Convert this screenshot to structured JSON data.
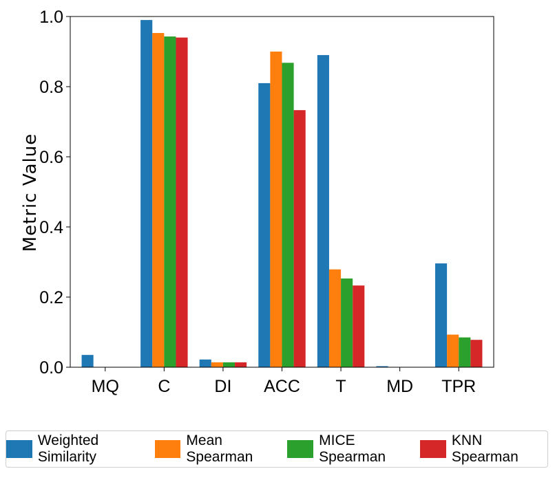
{
  "chart_data": {
    "type": "bar",
    "title": "",
    "xlabel": "",
    "ylabel": "Metric Value",
    "ylim": [
      0,
      1.0
    ],
    "yticks": [
      "0.0",
      "0.2",
      "0.4",
      "0.6",
      "0.8",
      "1.0"
    ],
    "categories": [
      "MQ",
      "C",
      "DI",
      "ACC",
      "T",
      "MD",
      "TPR"
    ],
    "series": [
      {
        "name": "Weighted Similarity",
        "color": "#1f77b4",
        "values": [
          0.035,
          0.99,
          0.022,
          0.81,
          0.89,
          0.003,
          0.296
        ]
      },
      {
        "name": "Mean Spearman",
        "color": "#ff7f0e",
        "values": [
          0.0,
          0.953,
          0.014,
          0.9,
          0.279,
          0.0,
          0.093
        ]
      },
      {
        "name": "MICE Spearman",
        "color": "#2ca02c",
        "values": [
          0.0,
          0.943,
          0.014,
          0.868,
          0.253,
          0.0,
          0.085
        ]
      },
      {
        "name": "KNN Spearman",
        "color": "#d62728",
        "values": [
          0.0,
          0.94,
          0.014,
          0.733,
          0.233,
          0.0,
          0.078
        ]
      }
    ]
  }
}
